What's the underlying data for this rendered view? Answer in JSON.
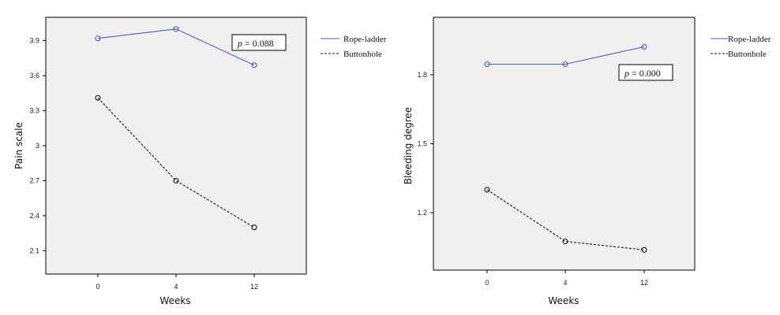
{
  "colors": {
    "background": "#ffffff",
    "plot_background": "#f0f0f0",
    "rope_ladder": "#4a5fb8",
    "buttonhole": "#111111"
  },
  "chart_data": [
    {
      "type": "line",
      "title": "",
      "xlabel": "Weeks",
      "ylabel": "Pain scale",
      "categories": [
        "0",
        "4",
        "12"
      ],
      "yticks": [
        "2.1",
        "2.4",
        "2.7",
        "3",
        "3.3",
        "3.6",
        "3.9"
      ],
      "ylim": [
        1.9,
        4.1
      ],
      "series": [
        {
          "name": "Rope-ladder",
          "values": [
            3.92,
            4.0,
            3.69
          ]
        },
        {
          "name": "Buttonhole",
          "values": [
            3.41,
            2.7,
            2.3
          ]
        }
      ],
      "annotation": {
        "p": "p",
        "eq": "= 0.088"
      },
      "legend_position": "top-right-outside",
      "grid": false
    },
    {
      "type": "line",
      "title": "",
      "xlabel": "Weeks",
      "ylabel": "Bleeding degree",
      "categories": [
        "0",
        "4",
        "12"
      ],
      "yticks": [
        "1.2",
        "1.5",
        "1.8"
      ],
      "ylim": [
        0.95,
        2.05
      ],
      "series": [
        {
          "name": "Rope-ladder",
          "values": [
            1.846,
            1.846,
            1.922
          ]
        },
        {
          "name": "Buttonhole",
          "values": [
            1.3,
            1.075,
            1.038
          ]
        }
      ],
      "annotation": {
        "p": "p",
        "eq": "= 0.000"
      },
      "legend_position": "top-right-outside",
      "grid": false
    }
  ]
}
